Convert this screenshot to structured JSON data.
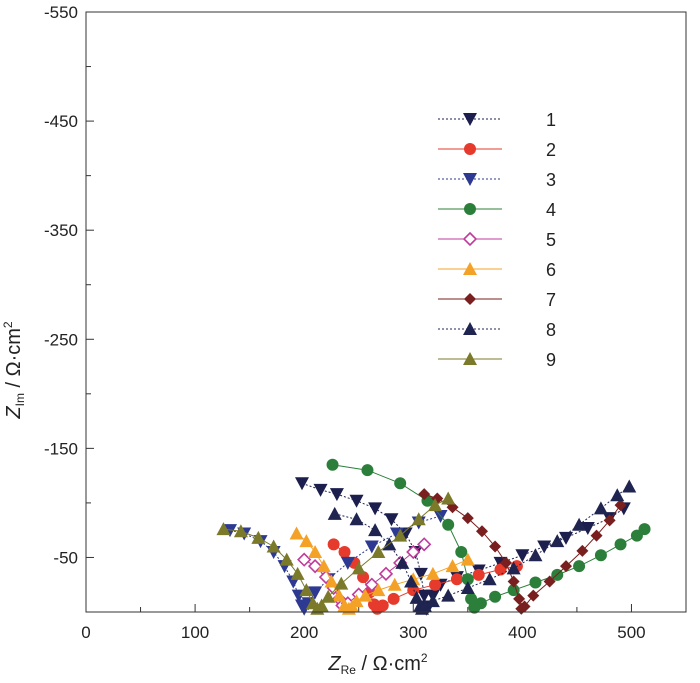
{
  "chart_data": {
    "type": "scatter",
    "title": "",
    "xlabel": {
      "main": "Z",
      "sub": "Re",
      "unit": " / Ω·cm",
      "sup": "2"
    },
    "ylabel": {
      "main": "Z",
      "sub": "Im",
      "unit": " / Ω·cm",
      "sup": "2"
    },
    "xlim": [
      0,
      550
    ],
    "ylim": [
      0,
      -550
    ],
    "xticks": [
      0,
      100,
      200,
      300,
      400,
      500
    ],
    "yticks": [
      -50,
      -150,
      -250,
      -350,
      -450,
      -550
    ],
    "x_minor_step": 50,
    "y_minor_step": 50,
    "grid": false,
    "legend_position": "upper-right",
    "series": [
      {
        "name": "1",
        "color": "#1c1f4d",
        "marker": "triangle-down",
        "dashed": true,
        "x": [
          198,
          215,
          230,
          248,
          265,
          280,
          293,
          302,
          307,
          310,
          312,
          314,
          318,
          325,
          340,
          360,
          380,
          400,
          420,
          440,
          460,
          480,
          493
        ],
        "y": [
          -118,
          -112,
          -108,
          -102,
          -95,
          -85,
          -72,
          -55,
          -35,
          -15,
          -3,
          -5,
          -15,
          -25,
          -32,
          -38,
          -45,
          -52,
          -60,
          -68,
          -77,
          -86,
          -95
        ]
      },
      {
        "name": "2",
        "color": "#e53a2c",
        "marker": "circle",
        "dashed": false,
        "x": [
          227,
          237,
          246,
          254,
          260,
          264,
          267,
          272,
          282,
          300,
          320,
          340,
          360,
          380,
          395
        ],
        "y": [
          -62,
          -55,
          -45,
          -32,
          -18,
          -7,
          -3,
          -6,
          -12,
          -20,
          -25,
          -30,
          -34,
          -39,
          -42
        ]
      },
      {
        "name": "3",
        "color": "#2e3a91",
        "marker": "triangle-down",
        "dashed": true,
        "x": [
          132,
          145,
          160,
          172,
          182,
          190,
          195,
          198,
          200,
          204,
          210,
          222,
          240,
          262,
          285,
          305,
          325
        ],
        "y": [
          -75,
          -72,
          -65,
          -55,
          -42,
          -28,
          -15,
          -6,
          -3,
          -8,
          -18,
          -30,
          -45,
          -60,
          -72,
          -82,
          -88
        ]
      },
      {
        "name": "4",
        "color": "#2c7f3a",
        "marker": "circle",
        "dashed": false,
        "x": [
          226,
          258,
          288,
          313,
          332,
          344,
          350,
          353,
          356,
          362,
          375,
          392,
          412,
          432,
          452,
          472,
          490,
          505,
          512
        ],
        "y": [
          -135,
          -130,
          -118,
          -102,
          -80,
          -55,
          -30,
          -12,
          -4,
          -8,
          -14,
          -20,
          -27,
          -34,
          -42,
          -52,
          -62,
          -70,
          -76
        ]
      },
      {
        "name": "5",
        "color": "#c03a9c",
        "marker": "diamond-open",
        "dashed": false,
        "x": [
          200,
          210,
          220,
          227,
          232,
          235,
          240,
          250,
          262,
          275,
          288,
          300,
          310
        ],
        "y": [
          -48,
          -42,
          -32,
          -22,
          -12,
          -6,
          -8,
          -16,
          -25,
          -35,
          -45,
          -55,
          -62
        ]
      },
      {
        "name": "6",
        "color": "#f4a227",
        "marker": "triangle-up",
        "dashed": false,
        "x": [
          193,
          202,
          210,
          218,
          225,
          232,
          237,
          241,
          244,
          248,
          256,
          268,
          283,
          300,
          318,
          336,
          350
        ],
        "y": [
          -72,
          -65,
          -55,
          -42,
          -28,
          -15,
          -6,
          -3,
          -5,
          -10,
          -15,
          -20,
          -25,
          -30,
          -35,
          -42,
          -48
        ]
      },
      {
        "name": "7",
        "color": "#7a1f1f",
        "marker": "diamond",
        "dashed": false,
        "x": [
          310,
          322,
          336,
          350,
          363,
          375,
          385,
          392,
          397,
          399,
          402,
          410,
          425,
          440,
          455,
          468,
          480,
          490
        ],
        "y": [
          -108,
          -104,
          -96,
          -86,
          -74,
          -60,
          -45,
          -28,
          -12,
          -3,
          -5,
          -15,
          -28,
          -42,
          -56,
          -70,
          -84,
          -98
        ]
      },
      {
        "name": "8",
        "color": "#1f2550",
        "marker": "triangle-up",
        "dashed": true,
        "x": [
          228,
          248,
          265,
          278,
          290,
          298,
          303,
          306,
          308,
          311,
          318,
          332,
          350,
          370,
          392,
          412,
          432,
          452,
          472,
          487,
          498
        ],
        "y": [
          -90,
          -85,
          -75,
          -62,
          -45,
          -28,
          -13,
          -5,
          -3,
          -5,
          -10,
          -15,
          -22,
          -30,
          -40,
          -52,
          -65,
          -80,
          -95,
          -107,
          -115
        ]
      },
      {
        "name": "9",
        "color": "#7b7a2a",
        "marker": "triangle-up",
        "dashed": false,
        "x": [
          126,
          142,
          158,
          172,
          184,
          194,
          202,
          208,
          212,
          216,
          222,
          234,
          250,
          268,
          288,
          305,
          320,
          332
        ],
        "y": [
          -76,
          -74,
          -68,
          -60,
          -48,
          -35,
          -20,
          -8,
          -3,
          -6,
          -14,
          -26,
          -40,
          -55,
          -70,
          -85,
          -98,
          -104
        ]
      }
    ]
  }
}
